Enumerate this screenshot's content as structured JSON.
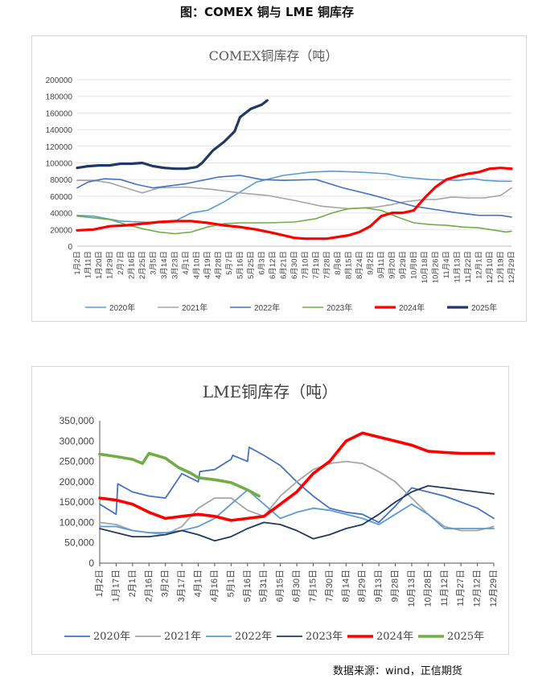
{
  "figure_title": "图：COMEX 铜与 LME 铜库存",
  "source": "数据来源：wind，正信期货",
  "chart_data": [
    {
      "type": "line",
      "title": "COMEX铜库存（吨）",
      "xlabel": "",
      "ylabel": "",
      "ylim": [
        0,
        200000
      ],
      "yticks": [
        "200000",
        "180000",
        "160000",
        "140000",
        "120000",
        "100000",
        "80000",
        "60000",
        "40000",
        "20000",
        "0"
      ],
      "x_categories": [
        "1月2日",
        "1月11日",
        "1月20日",
        "1月29日",
        "2月7日",
        "2月16日",
        "2月25日",
        "3月5日",
        "3月14日",
        "3月23日",
        "4月1日",
        "4月10日",
        "4月19日",
        "4月28日",
        "5月7日",
        "5月16日",
        "5月25日",
        "6月3日",
        "6月12日",
        "6月21日",
        "6月30日",
        "7月10日",
        "7月19日",
        "7月28日",
        "8月6日",
        "8月15日",
        "8月24日",
        "9月2日",
        "9月11日",
        "9月20日",
        "9月29日",
        "10月8日",
        "10月18日",
        "10月26日",
        "11月4日",
        "11月13日",
        "11月22日",
        "12月1日",
        "12月10日",
        "12月19日",
        "12月29日"
      ],
      "grid": true,
      "legend": "bottom",
      "series": [
        {
          "name": "2020年",
          "color": "#5b9bd5",
          "width": 1.6,
          "x": [
            0,
            3,
            8,
            12,
            16,
            18,
            21,
            24,
            27,
            30,
            33,
            38,
            43,
            47,
            52,
            57,
            60,
            65,
            70,
            73,
            75,
            78,
            80
          ],
          "y": [
            37000,
            36000,
            30000,
            29000,
            28000,
            30000,
            40000,
            43000,
            53000,
            65000,
            77000,
            85000,
            89000,
            90000,
            89000,
            87000,
            83000,
            80000,
            79000,
            81000,
            79000,
            78000,
            78000
          ]
        },
        {
          "name": "2021年",
          "color": "#a5a5a5",
          "width": 1.6,
          "x": [
            0,
            3,
            6,
            9,
            12,
            15,
            20,
            25,
            30,
            35,
            40,
            45,
            50,
            55,
            58,
            60,
            64,
            66,
            69,
            72,
            75,
            78,
            80
          ],
          "y": [
            79000,
            79000,
            76000,
            70000,
            64000,
            70000,
            71000,
            68000,
            64000,
            61000,
            55000,
            48000,
            45000,
            47000,
            50000,
            53000,
            56000,
            56000,
            59000,
            58000,
            58000,
            61000,
            70000
          ]
        },
        {
          "name": "2022年",
          "color": "#4472c4",
          "width": 1.6,
          "x": [
            0,
            2,
            5,
            8,
            11,
            14,
            20,
            26,
            30,
            34,
            38,
            44,
            49,
            54,
            58,
            62,
            66,
            70,
            74,
            78,
            80
          ],
          "y": [
            70000,
            77000,
            81000,
            80000,
            74000,
            70000,
            75000,
            83000,
            85000,
            80000,
            79000,
            80000,
            70000,
            62000,
            55000,
            48000,
            44000,
            40000,
            37000,
            37000,
            35000
          ]
        },
        {
          "name": "2023年",
          "color": "#70ad47",
          "width": 1.6,
          "x": [
            0,
            3,
            6,
            9,
            12,
            15,
            18,
            21,
            24,
            27,
            30,
            35,
            40,
            44,
            47,
            50,
            53,
            56,
            59,
            62,
            65,
            68,
            71,
            74,
            77,
            79,
            80
          ],
          "y": [
            36000,
            34000,
            32000,
            26000,
            21000,
            17000,
            15000,
            17000,
            23000,
            27000,
            28000,
            28000,
            29000,
            33000,
            40000,
            45000,
            46000,
            43000,
            35000,
            28000,
            26000,
            25000,
            23000,
            22000,
            19000,
            17000,
            18000
          ]
        },
        {
          "name": "2024年",
          "color": "#ff0000",
          "width": 3.2,
          "x": [
            0,
            3,
            6,
            9,
            12,
            15,
            18,
            21,
            24,
            27,
            30,
            33,
            36,
            38,
            40,
            42,
            44,
            46,
            48,
            50,
            52,
            54,
            56,
            58,
            60,
            62,
            64,
            66,
            68,
            70,
            72,
            74,
            76,
            78,
            80
          ],
          "y": [
            19000,
            20000,
            24000,
            25000,
            27000,
            29000,
            30000,
            30000,
            28000,
            25000,
            23000,
            20000,
            16000,
            13000,
            10000,
            9000,
            9000,
            9000,
            11000,
            13000,
            17000,
            24000,
            36000,
            40000,
            40000,
            43000,
            58000,
            71000,
            80000,
            84000,
            87000,
            89000,
            93000,
            94000,
            93000
          ]
        },
        {
          "name": "2025年",
          "color": "#203864",
          "width": 3.2,
          "x": [
            0,
            2,
            4,
            6,
            8,
            10,
            12,
            14,
            16,
            18,
            20,
            22,
            23,
            25,
            27,
            29,
            30,
            32,
            34,
            35
          ],
          "y": [
            94000,
            96000,
            97000,
            97000,
            99000,
            99000,
            100000,
            96000,
            94000,
            93000,
            93000,
            95000,
            100000,
            115000,
            125000,
            138000,
            155000,
            165000,
            170000,
            175000
          ]
        }
      ]
    },
    {
      "type": "line",
      "title": "LME铜库存（吨）",
      "xlabel": "",
      "ylabel": "",
      "ylim": [
        0,
        350000
      ],
      "yticks": [
        "350,000",
        "300,000",
        "250,000",
        "200,000",
        "150,000",
        "100,000",
        "50,000",
        "0"
      ],
      "x_categories": [
        "1月2日",
        "1月17日",
        "2月1日",
        "2月16日",
        "3月2日",
        "3月17日",
        "4月1日",
        "4月16日",
        "5月1日",
        "5月16日",
        "5月31日",
        "6月15日",
        "6月30日",
        "7月15日",
        "7月30日",
        "8月14日",
        "8月29日",
        "9月13日",
        "9月28日",
        "10月13日",
        "10月28日",
        "11月12日",
        "11月27日",
        "12月12日",
        "12月29日"
      ],
      "grid": false,
      "legend": "bottom",
      "series": [
        {
          "name": "2020年",
          "color": "#4472c4",
          "width": 1.8,
          "x": [
            0,
            1,
            1.1,
            2,
            3,
            4,
            5,
            6,
            6.1,
            7,
            8,
            8.1,
            9,
            9.1,
            10,
            11,
            12,
            13,
            14,
            15,
            16,
            17,
            18,
            19,
            20,
            21,
            22,
            23,
            24
          ],
          "y": [
            145000,
            120000,
            195000,
            175000,
            165000,
            160000,
            220000,
            200000,
            225000,
            230000,
            255000,
            265000,
            250000,
            285000,
            265000,
            240000,
            200000,
            165000,
            135000,
            125000,
            120000,
            100000,
            140000,
            185000,
            175000,
            165000,
            150000,
            135000,
            110000
          ]
        },
        {
          "name": "2021年",
          "color": "#a5a5a5",
          "width": 1.8,
          "x": [
            0,
            1,
            2,
            3,
            4,
            5,
            6,
            7,
            8,
            9,
            10,
            11,
            12,
            13,
            14,
            15,
            16,
            17,
            18,
            19,
            20,
            21,
            22,
            23,
            24
          ],
          "y": [
            100000,
            95000,
            80000,
            75000,
            70000,
            90000,
            135000,
            160000,
            160000,
            130000,
            115000,
            165000,
            200000,
            230000,
            245000,
            250000,
            245000,
            225000,
            200000,
            160000,
            120000,
            90000,
            80000,
            80000,
            90000
          ]
        },
        {
          "name": "2022年",
          "color": "#5b9bd5",
          "width": 1.8,
          "x": [
            0,
            1,
            2,
            3,
            4,
            5,
            6,
            7,
            8,
            9,
            10,
            11,
            12,
            13,
            14,
            15,
            16,
            17,
            18,
            19,
            20,
            21,
            22,
            23,
            24
          ],
          "y": [
            90000,
            90000,
            80000,
            75000,
            75000,
            80000,
            90000,
            110000,
            145000,
            180000,
            145000,
            110000,
            125000,
            135000,
            130000,
            120000,
            110000,
            95000,
            120000,
            145000,
            120000,
            85000,
            85000,
            85000,
            85000
          ]
        },
        {
          "name": "2023年",
          "color": "#203864",
          "width": 1.8,
          "x": [
            0,
            1,
            2,
            3,
            4,
            5,
            6,
            7,
            8,
            9,
            10,
            11,
            12,
            13,
            14,
            15,
            16,
            17,
            18,
            19,
            20,
            21,
            22,
            23,
            24
          ],
          "y": [
            85000,
            75000,
            65000,
            65000,
            70000,
            80000,
            70000,
            55000,
            65000,
            85000,
            100000,
            95000,
            80000,
            60000,
            70000,
            85000,
            95000,
            120000,
            150000,
            175000,
            190000,
            185000,
            180000,
            175000,
            170000
          ]
        },
        {
          "name": "2024年",
          "color": "#ff0000",
          "width": 3.6,
          "x": [
            0,
            1,
            2,
            3,
            4,
            5,
            6,
            7,
            8,
            9,
            10,
            11,
            12,
            13,
            14,
            15,
            16,
            17,
            18,
            19,
            20,
            21,
            22,
            23,
            24
          ],
          "y": [
            160000,
            155000,
            145000,
            125000,
            110000,
            115000,
            120000,
            115000,
            105000,
            110000,
            115000,
            145000,
            175000,
            220000,
            250000,
            300000,
            320000,
            310000,
            300000,
            290000,
            275000,
            272000,
            270000,
            270000,
            270000
          ]
        },
        {
          "name": "2025年",
          "color": "#70ad47",
          "width": 3.6,
          "x": [
            0,
            1,
            2,
            2.6,
            3,
            4,
            4.8,
            5.5,
            6,
            7,
            8,
            9,
            9.7
          ],
          "y": [
            268000,
            262000,
            255000,
            245000,
            270000,
            258000,
            235000,
            222000,
            210000,
            205000,
            198000,
            180000,
            165000
          ]
        }
      ]
    }
  ]
}
